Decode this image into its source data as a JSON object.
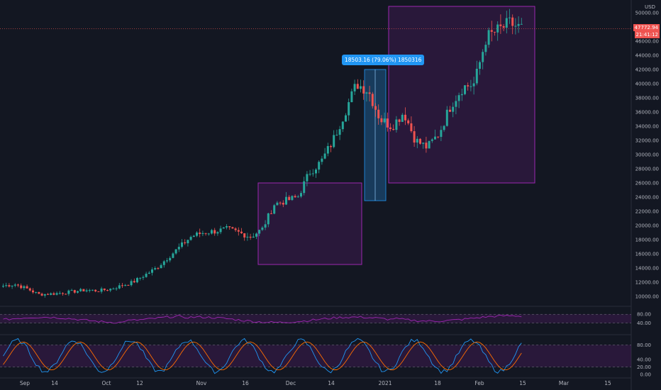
{
  "chart_data": {
    "type": "candlestick",
    "symbol_currency": "USD",
    "current_price": "47772.94",
    "countdown": "21:41:12",
    "measurement": "18503.16 (79.06%) 1850316",
    "y_axis_ticks": [
      "50000.00",
      "48000.00",
      "46000.00",
      "44000.00",
      "42000.00",
      "40000.00",
      "38000.00",
      "36000.00",
      "34000.00",
      "32000.00",
      "30000.00",
      "28000.00",
      "26000.00",
      "24000.00",
      "22000.00",
      "20000.00",
      "18000.00",
      "16000.00",
      "14000.00",
      "12000.00",
      "10000.00"
    ],
    "x_axis_ticks": [
      "Sep",
      "14",
      "Oct",
      "12",
      "Nov",
      "16",
      "Dec",
      "14",
      "2021",
      "18",
      "Feb",
      "15",
      "Mar",
      "15"
    ],
    "rsi_ticks": [
      "80.00",
      "40.00"
    ],
    "stoch_ticks": [
      "80.00",
      "40.00",
      "20.00",
      "0.00"
    ],
    "price_series_anchor_values": [
      11500,
      11700,
      11100,
      10300,
      10350,
      10500,
      10700,
      10900,
      10800,
      11000,
      11500,
      12000,
      13000,
      14000,
      15500,
      17000,
      18500,
      19000,
      19200,
      19500,
      19000,
      18400,
      19500,
      23000,
      23500,
      24000,
      27500,
      29000,
      32000,
      36000,
      40000,
      39000,
      35000,
      34000,
      36000,
      32000,
      31000,
      33000,
      37000,
      39500,
      40000,
      46500,
      47500,
      48500,
      47800
    ],
    "rsi_range": [
      0,
      100
    ],
    "stochastic_range": [
      0,
      100
    ],
    "colors": {
      "background": "#131722",
      "up": "#26a69a",
      "down": "#ef5350",
      "box_fill": "#8e24aa",
      "box_stroke": "#9c27b0",
      "measure_fill": "#1e5a8c",
      "rsi_line": "#9c27b0",
      "stoch_k": "#2196f3",
      "stoch_d": "#ff6d00"
    }
  }
}
